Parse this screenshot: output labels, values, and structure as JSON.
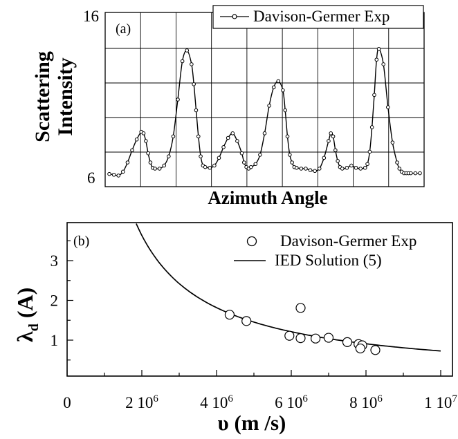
{
  "chart_data": [
    {
      "type": "line",
      "panel_label": "(a)",
      "xlabel": "Azimuth Angle",
      "ylabel_line1": "Scattering",
      "ylabel_line2": "Intensity",
      "ylim": [
        6,
        16
      ],
      "ytick_labels": [
        "6",
        "16"
      ],
      "grid": true,
      "legend_position": "top-right",
      "series": [
        {
          "name": "Davison-Germer Exp",
          "x": [
            0,
            2,
            4,
            6,
            8,
            10,
            12,
            14,
            15,
            16,
            17,
            18,
            19,
            20,
            22,
            24,
            26,
            28,
            30,
            32,
            34,
            36,
            37,
            38,
            39,
            40,
            41,
            42,
            44,
            46,
            48,
            50,
            52,
            54,
            56,
            58,
            59,
            60,
            61,
            62,
            64,
            66,
            68,
            70,
            72,
            74,
            76,
            77,
            78,
            79,
            80,
            81,
            82,
            84,
            86,
            88,
            90,
            92,
            94,
            96,
            97,
            98,
            99,
            100,
            101,
            102,
            104,
            106,
            108,
            110,
            112,
            113,
            114,
            115,
            116,
            117,
            118,
            120,
            122,
            124,
            126,
            127,
            128,
            129,
            130,
            131,
            132,
            134,
            136
          ],
          "y": [
            6.15,
            6.1,
            6.05,
            6.3,
            6.9,
            7.7,
            8.4,
            8.9,
            8.8,
            8.3,
            7.5,
            6.9,
            6.55,
            6.5,
            6.5,
            6.7,
            7.3,
            8.6,
            11.0,
            13.5,
            14.2,
            13.3,
            12.0,
            10.3,
            8.6,
            7.3,
            6.7,
            6.6,
            6.55,
            6.7,
            7.2,
            7.9,
            8.5,
            8.8,
            8.3,
            7.5,
            6.9,
            6.6,
            6.5,
            6.6,
            6.8,
            7.4,
            8.8,
            10.6,
            11.8,
            12.2,
            11.6,
            10.3,
            8.6,
            7.4,
            6.9,
            6.6,
            6.55,
            6.5,
            6.5,
            6.4,
            6.35,
            6.5,
            7.2,
            8.3,
            8.8,
            8.6,
            7.7,
            7.0,
            6.6,
            6.5,
            6.55,
            6.7,
            6.55,
            6.5,
            6.55,
            6.8,
            7.6,
            9.2,
            11.3,
            13.6,
            14.3,
            13.3,
            10.5,
            8.2,
            6.9,
            6.5,
            6.3,
            6.2,
            6.2,
            6.2,
            6.2,
            6.2,
            6.2
          ]
        }
      ]
    },
    {
      "type": "scatter",
      "panel_label": "(b)",
      "xlabel": "υ (m /s)",
      "ylabel": "λ",
      "ylabel_sub": "d",
      "ylabel_unit": "(A)",
      "xlim": [
        0,
        10000000
      ],
      "ylim": [
        0.5,
        4.0
      ],
      "xtick_labels": [
        {
          "value": 0,
          "base": "0",
          "exp": ""
        },
        {
          "value": 2000000,
          "base": "2 10",
          "exp": "6"
        },
        {
          "value": 4000000,
          "base": "4 10",
          "exp": "6"
        },
        {
          "value": 6000000,
          "base": "6 10",
          "exp": "6"
        },
        {
          "value": 8000000,
          "base": "8 10",
          "exp": "6"
        },
        {
          "value": 10000000,
          "base": "1 10",
          "exp": "7"
        }
      ],
      "ytick_labels": [
        {
          "value": 1,
          "label": "1"
        },
        {
          "value": 2,
          "label": "2"
        },
        {
          "value": 3,
          "label": "3"
        }
      ],
      "grid": false,
      "legend_position": "top-right",
      "series": [
        {
          "name": "Davison-Germer Exp",
          "marker": "open-circle",
          "x": [
            4350000,
            4800000,
            5950000,
            6250000,
            6250000,
            6650000,
            7000000,
            7500000,
            7800000,
            7900000,
            7850000,
            8250000
          ],
          "y": [
            1.64,
            1.48,
            1.11,
            1.05,
            1.81,
            1.04,
            1.06,
            0.95,
            0.9,
            0.87,
            0.79,
            0.75
          ]
        },
        {
          "name": "IED Solution (5)",
          "marker": "line",
          "formula_constant": 7270000,
          "x_start": 1850000,
          "x_end": 10000000
        }
      ]
    }
  ]
}
